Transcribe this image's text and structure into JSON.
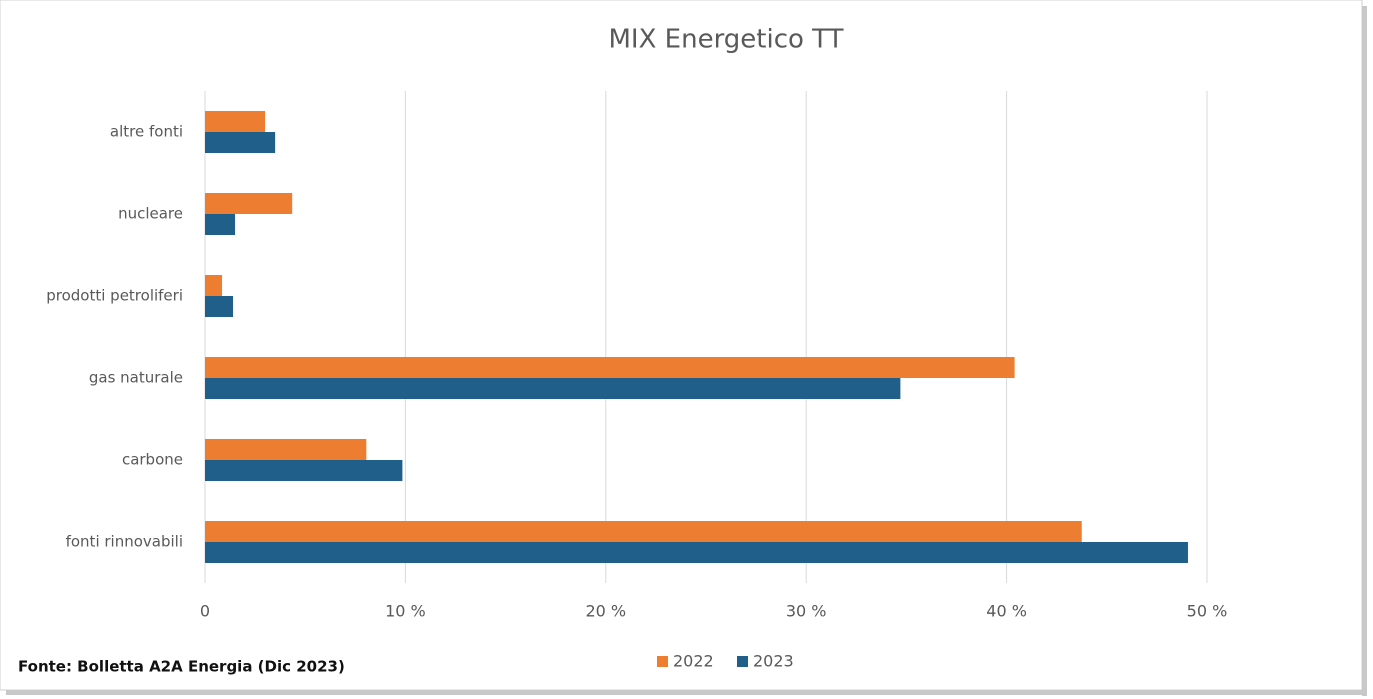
{
  "chart_data": {
    "type": "hbar",
    "title": "MIX Energetico TT",
    "categories": [
      "altre fonti",
      "nucleare",
      "prodotti petroliferi",
      "gas naturale",
      "carbone",
      "fonti rinnovabili"
    ],
    "series": [
      {
        "name": "2022",
        "color": "#ed7d31",
        "values": [
          3.0,
          4.35,
          0.85,
          40.4,
          8.05,
          43.75
        ]
      },
      {
        "name": "2023",
        "color": "#1f5f8a",
        "values": [
          3.5,
          1.5,
          1.4,
          34.7,
          9.85,
          49.05
        ]
      }
    ],
    "xlim": [
      0,
      50
    ],
    "xticks": [
      0,
      {
        "value": 10,
        "label": "10 %"
      },
      {
        "value": 20,
        "label": "20 %"
      },
      {
        "value": 30,
        "label": "30 %"
      },
      {
        "value": 40,
        "label": "40 %"
      },
      {
        "value": 50,
        "label": "50 %"
      }
    ],
    "grid": true,
    "legend": "bottom",
    "source": "Fonte: Bolletta A2A Energia (Dic 2023)"
  }
}
